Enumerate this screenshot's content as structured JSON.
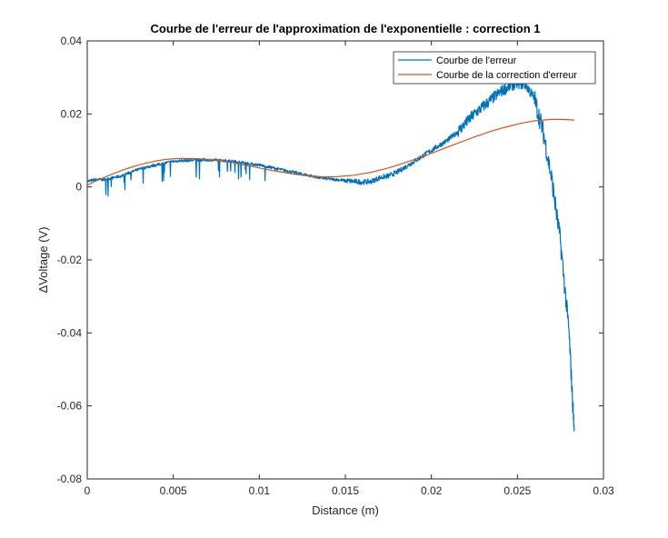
{
  "chart_data": {
    "type": "line",
    "title": "Courbe de l'erreur de l'approximation de l'exponentielle : correction 1",
    "xlabel": "Distance (m)",
    "ylabel": "ΔVoltage (V)",
    "xlim": [
      0,
      0.03
    ],
    "ylim": [
      -0.08,
      0.04
    ],
    "xticks": [
      0,
      0.005,
      0.01,
      0.015,
      0.02,
      0.025,
      0.03
    ],
    "xtick_labels": [
      "0",
      "0.005",
      "0.01",
      "0.015",
      "0.02",
      "0.025",
      "0.03"
    ],
    "yticks": [
      -0.08,
      -0.06,
      -0.04,
      -0.02,
      0,
      0.02,
      0.04
    ],
    "ytick_labels": [
      "-0.08",
      "-0.06",
      "-0.04",
      "-0.02",
      "0",
      "0.02",
      "0.04"
    ],
    "grid": false,
    "legend_position": "top-right",
    "series": [
      {
        "name": "Courbe de l'erreur",
        "color": "#0072BD",
        "noisy": true,
        "x": [
          0,
          0.0005,
          0.001,
          0.0015,
          0.002,
          0.0025,
          0.003,
          0.0035,
          0.004,
          0.0045,
          0.005,
          0.0055,
          0.006,
          0.0065,
          0.007,
          0.0075,
          0.008,
          0.0085,
          0.009,
          0.0095,
          0.01,
          0.0105,
          0.011,
          0.0115,
          0.012,
          0.0125,
          0.013,
          0.0135,
          0.014,
          0.0145,
          0.015,
          0.0155,
          0.016,
          0.0165,
          0.017,
          0.0175,
          0.018,
          0.0185,
          0.019,
          0.0195,
          0.02,
          0.0205,
          0.021,
          0.0215,
          0.022,
          0.0225,
          0.023,
          0.0235,
          0.024,
          0.0245,
          0.025,
          0.0255,
          0.026,
          0.0265,
          0.027,
          0.0275,
          0.028,
          0.0283
        ],
        "y": [
          0.0015,
          0.002,
          0.002,
          0.0025,
          0.003,
          0.004,
          0.0048,
          0.0055,
          0.006,
          0.0065,
          0.007,
          0.0072,
          0.0073,
          0.0074,
          0.0074,
          0.0073,
          0.0072,
          0.007,
          0.0067,
          0.0063,
          0.006,
          0.0055,
          0.005,
          0.0045,
          0.004,
          0.0035,
          0.003,
          0.0025,
          0.0022,
          0.002,
          0.0017,
          0.0015,
          0.0013,
          0.0015,
          0.0025,
          0.003,
          0.004,
          0.0055,
          0.007,
          0.0085,
          0.01,
          0.0115,
          0.013,
          0.015,
          0.0175,
          0.02,
          0.022,
          0.024,
          0.026,
          0.0275,
          0.0285,
          0.028,
          0.024,
          0.015,
          0.002,
          -0.015,
          -0.04,
          -0.067
        ]
      },
      {
        "name": "Courbe de la correction d'erreur",
        "color": "#D95319",
        "noisy": false,
        "x": [
          0,
          0.0005,
          0.001,
          0.0015,
          0.002,
          0.0025,
          0.003,
          0.0035,
          0.004,
          0.0045,
          0.005,
          0.0055,
          0.006,
          0.0065,
          0.007,
          0.0075,
          0.008,
          0.0085,
          0.009,
          0.0095,
          0.01,
          0.0105,
          0.011,
          0.0115,
          0.012,
          0.0125,
          0.013,
          0.0135,
          0.014,
          0.0145,
          0.015,
          0.0155,
          0.016,
          0.0165,
          0.017,
          0.0175,
          0.018,
          0.0185,
          0.019,
          0.0195,
          0.02,
          0.0205,
          0.021,
          0.0215,
          0.022,
          0.0225,
          0.023,
          0.0235,
          0.024,
          0.0245,
          0.025,
          0.0255,
          0.026,
          0.0265,
          0.027,
          0.0275,
          0.028,
          0.0283
        ],
        "y": [
          0.0005,
          0.0016,
          0.0026,
          0.0036,
          0.0045,
          0.0053,
          0.006,
          0.0066,
          0.0071,
          0.0075,
          0.0077,
          0.0078,
          0.0078,
          0.0077,
          0.0075,
          0.0073,
          0.0069,
          0.0066,
          0.0061,
          0.0057,
          0.0052,
          0.0047,
          0.0043,
          0.0039,
          0.0035,
          0.0032,
          0.003,
          0.0028,
          0.0028,
          0.0028,
          0.003,
          0.0032,
          0.0036,
          0.004,
          0.0046,
          0.0052,
          0.0059,
          0.0067,
          0.0075,
          0.0083,
          0.0092,
          0.0101,
          0.011,
          0.0119,
          0.0128,
          0.0137,
          0.0145,
          0.0153,
          0.016,
          0.0166,
          0.0172,
          0.0177,
          0.0181,
          0.0183,
          0.0185,
          0.0185,
          0.0184,
          0.0183
        ]
      }
    ]
  }
}
